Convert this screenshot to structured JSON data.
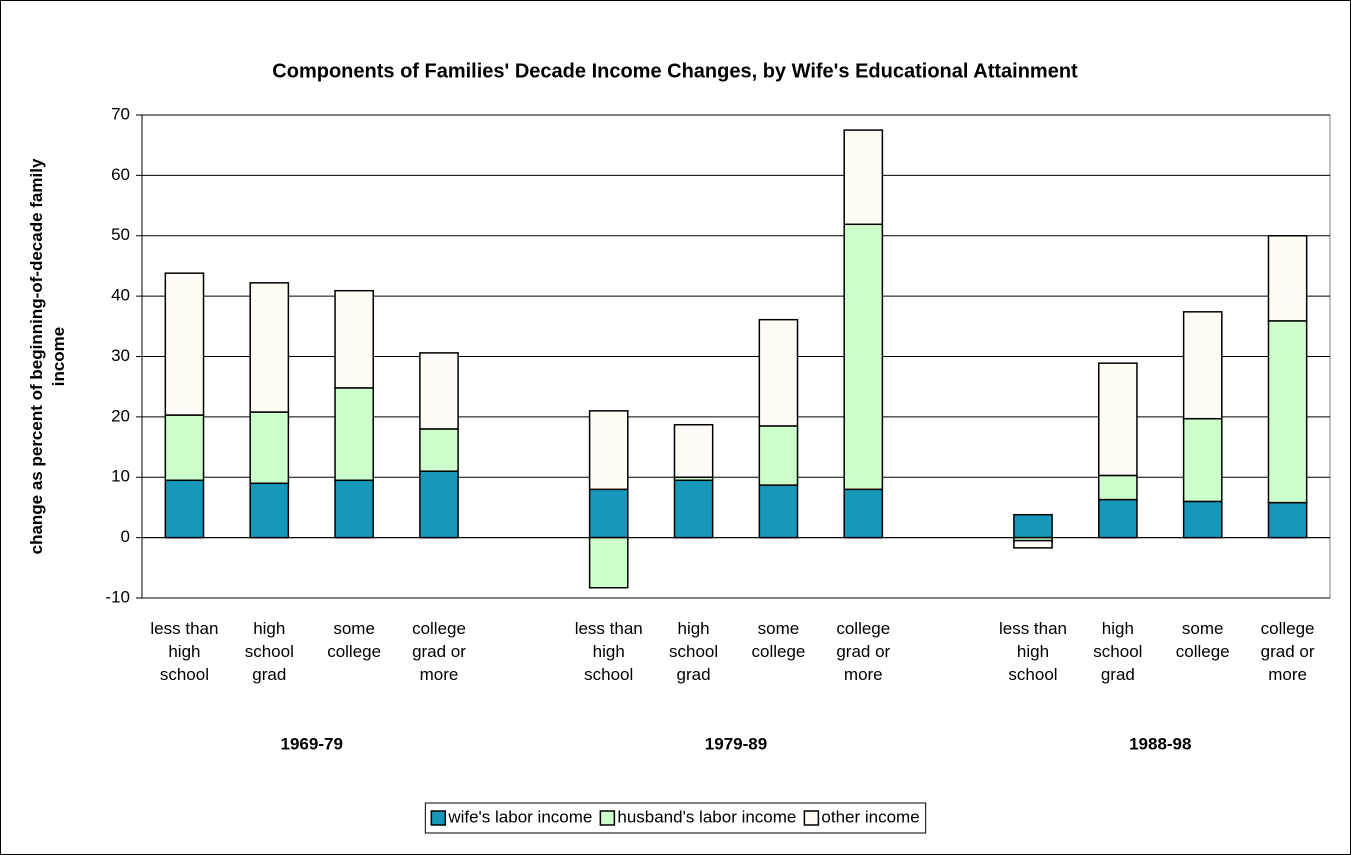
{
  "chart_data": {
    "type": "bar",
    "stacked": true,
    "title": "Components of Families' Decade Income Changes, by Wife's Educational Attainment",
    "y_label": "change as percent of beginning-of-decade family income",
    "categories": [
      "less than high school",
      "high school grad",
      "some college",
      "college grad or more",
      null,
      "less than high school",
      "high school grad",
      "some college",
      "college grad or more",
      null,
      "less than high school",
      "high school grad",
      "some college",
      "college grad or more"
    ],
    "groups": [
      "1969-79",
      "1979-89",
      "1988-98"
    ],
    "series": [
      {
        "name": "wife's labor income",
        "color": "#1798bb",
        "values": [
          9.5,
          9,
          9.5,
          11,
          null,
          8,
          9.5,
          8.7,
          8,
          null,
          3.8,
          6.3,
          6,
          5.8
        ]
      },
      {
        "name": "husband's labor income",
        "color": "#ccffcc",
        "values": [
          10.8,
          11.8,
          15.3,
          7,
          null,
          -8.3,
          0.5,
          9.8,
          43.9,
          null,
          -0.5,
          4,
          13.7,
          30.1
        ]
      },
      {
        "name": "other income",
        "color": "#fffbf5",
        "values": [
          23.5,
          21.4,
          16.1,
          12.6,
          null,
          13,
          8.7,
          17.6,
          15.6,
          null,
          -1.2,
          18.6,
          17.7,
          14.1
        ]
      }
    ],
    "ylim": [
      -10,
      70
    ],
    "yticks": [
      -10,
      0,
      10,
      20,
      30,
      40,
      50,
      60,
      70
    ],
    "grid": true,
    "legend": "bottom"
  }
}
